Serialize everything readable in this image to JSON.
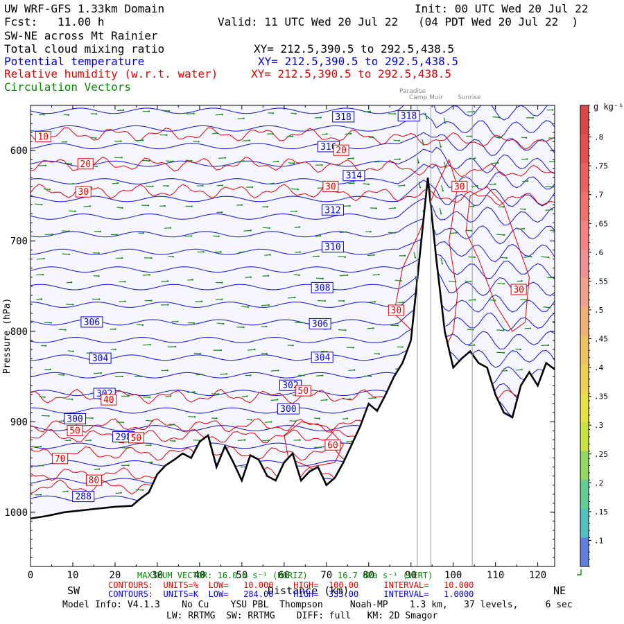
{
  "header": {
    "domain_title": "UW WRF-GFS 1.33km Domain",
    "init": "Init: 00 UTC Wed 20 Jul 22",
    "fcst": "Fcst:   11.00 h",
    "valid": "Valid: 11 UTC Wed 20 Jul 22   (04 PDT Wed 20 Jul 22  )",
    "cross_section": "SW-NE across Mt Rainier",
    "field1": "Total cloud mixing ratio",
    "field1_xy": "XY= 212.5,390.5 to 292.5,438.5",
    "field2": "Potential temperature",
    "field2_xy": "XY= 212.5,390.5 to 292.5,438.5",
    "field3": "Relative humidity (w.r.t. water)",
    "field3_xy": "XY= 212.5,390.5 to 292.5,438.5",
    "field4": "Circulation Vectors"
  },
  "places": {
    "paradise": "Paradise",
    "camp_muir": "Camp Muir",
    "sunrise": "Sunrise"
  },
  "footer": {
    "max_vector": "MAXIMUM VECTOR: 16.0 m s⁻¹ (HORIZ)      16.7 dPa s⁻¹ (VERT)",
    "sw": "SW",
    "ne": "NE",
    "xlabel": "Distance (km)",
    "contours_rh": "CONTOURS:  UNITS=%  LOW=   10.000    HIGH=  100.00     INTERVAL=   10.000",
    "contours_th": "CONTOURS:  UNITS=K  LOW=   284.00    HIGH=  333.00     INTERVAL=   1.0000",
    "model_info": "Model Info: V4.1.3    No Cu    YSU PBL  Thompson     Noah-MP    1.3 km,   37 levels,     6 sec",
    "model_info2": "LW: RRTMG  SW: RRTMG    DIFF: full   KM: 2D Smagor"
  },
  "colorbar": {
    "unit": "g kg⁻¹",
    "ticks": [
      ".8",
      ".75",
      ".7",
      ".65",
      ".6",
      ".55",
      ".5",
      ".45",
      ".4",
      ".35",
      ".3",
      ".25",
      ".2",
      ".15",
      ".1"
    ],
    "colors": [
      "#dd4444",
      "#e45050",
      "#ee6060",
      "#f07070",
      "#f48080",
      "#f49090",
      "#f4a090",
      "#f0b070",
      "#f0c060",
      "#f0d050",
      "#e8e040",
      "#c8e040",
      "#90d860",
      "#60d090",
      "#50c0c0",
      "#6080e0"
    ]
  },
  "chart_data": {
    "type": "cross-section contour",
    "x_ticks": [
      "0",
      "10",
      "20",
      "30",
      "40",
      "50",
      "60",
      "70",
      "80",
      "90",
      "100",
      "110",
      "120"
    ],
    "xlim": [
      0,
      124
    ],
    "y_ticks": [
      "600",
      "700",
      "800",
      "900",
      "1000"
    ],
    "ylabel": "Pressure (hPa)",
    "ylim": [
      1060,
      550
    ],
    "terrain_km": [
      0,
      4,
      8,
      12,
      16,
      20,
      24,
      26,
      28,
      30,
      32,
      34,
      36,
      38,
      40,
      42,
      44,
      46,
      48,
      50,
      52,
      54,
      56,
      58,
      60,
      62,
      64,
      66,
      68,
      70,
      72,
      74,
      76,
      78,
      80,
      82,
      84,
      86,
      88,
      90,
      92,
      94,
      96,
      98,
      100,
      102,
      104,
      106,
      108,
      110,
      112,
      114,
      116,
      118,
      120,
      122,
      124
    ],
    "terrain_hpa": [
      1007,
      1004,
      1000,
      998,
      996,
      994,
      993,
      985,
      978,
      958,
      948,
      942,
      935,
      940,
      922,
      915,
      950,
      927,
      945,
      965,
      937,
      942,
      960,
      965,
      945,
      935,
      965,
      955,
      950,
      970,
      962,
      945,
      925,
      905,
      880,
      888,
      870,
      850,
      835,
      810,
      720,
      630,
      720,
      800,
      840,
      830,
      822,
      835,
      840,
      870,
      890,
      895,
      860,
      845,
      860,
      835,
      842
    ],
    "station_lines_km": [
      91.5,
      94.7,
      104.5
    ],
    "theta_labels": [
      {
        "v": "318",
        "x": 74,
        "p": 563
      },
      {
        "v": "318",
        "x": 89.5,
        "p": 562
      },
      {
        "v": "316",
        "x": 70.5,
        "p": 596
      },
      {
        "v": "314",
        "x": 76.5,
        "p": 628
      },
      {
        "v": "312",
        "x": 71.5,
        "p": 666
      },
      {
        "v": "310",
        "x": 71.5,
        "p": 707
      },
      {
        "v": "308",
        "x": 69,
        "p": 752
      },
      {
        "v": "306",
        "x": 14.5,
        "p": 790
      },
      {
        "v": "306",
        "x": 68.5,
        "p": 792
      },
      {
        "v": "304",
        "x": 16.5,
        "p": 830
      },
      {
        "v": "304",
        "x": 69,
        "p": 829
      },
      {
        "v": "302",
        "x": 17.5,
        "p": 869
      },
      {
        "v": "302",
        "x": 61.5,
        "p": 860
      },
      {
        "v": "300",
        "x": 10.5,
        "p": 897
      },
      {
        "v": "300",
        "x": 61,
        "p": 886
      },
      {
        "v": "298",
        "x": 22,
        "p": 917
      },
      {
        "v": "288",
        "x": 12.5,
        "p": 983
      }
    ],
    "rh_labels": [
      {
        "v": "10",
        "x": 3,
        "p": 585
      },
      {
        "v": "20",
        "x": 13,
        "p": 615
      },
      {
        "v": "20",
        "x": 73.5,
        "p": 600
      },
      {
        "v": "30",
        "x": 12.5,
        "p": 646
      },
      {
        "v": "30",
        "x": 71,
        "p": 640
      },
      {
        "v": "30",
        "x": 101.5,
        "p": 640
      },
      {
        "v": "30",
        "x": 115.5,
        "p": 754
      },
      {
        "v": "30",
        "x": 86.5,
        "p": 777
      },
      {
        "v": "40",
        "x": 18.5,
        "p": 876
      },
      {
        "v": "50",
        "x": 64.5,
        "p": 866
      },
      {
        "v": "50",
        "x": 10.5,
        "p": 910
      },
      {
        "v": "50",
        "x": 25,
        "p": 918
      },
      {
        "v": "60",
        "x": 71.5,
        "p": 926
      },
      {
        "v": "70",
        "x": 7,
        "p": 941
      },
      {
        "v": "80",
        "x": 15,
        "p": 965
      }
    ]
  }
}
